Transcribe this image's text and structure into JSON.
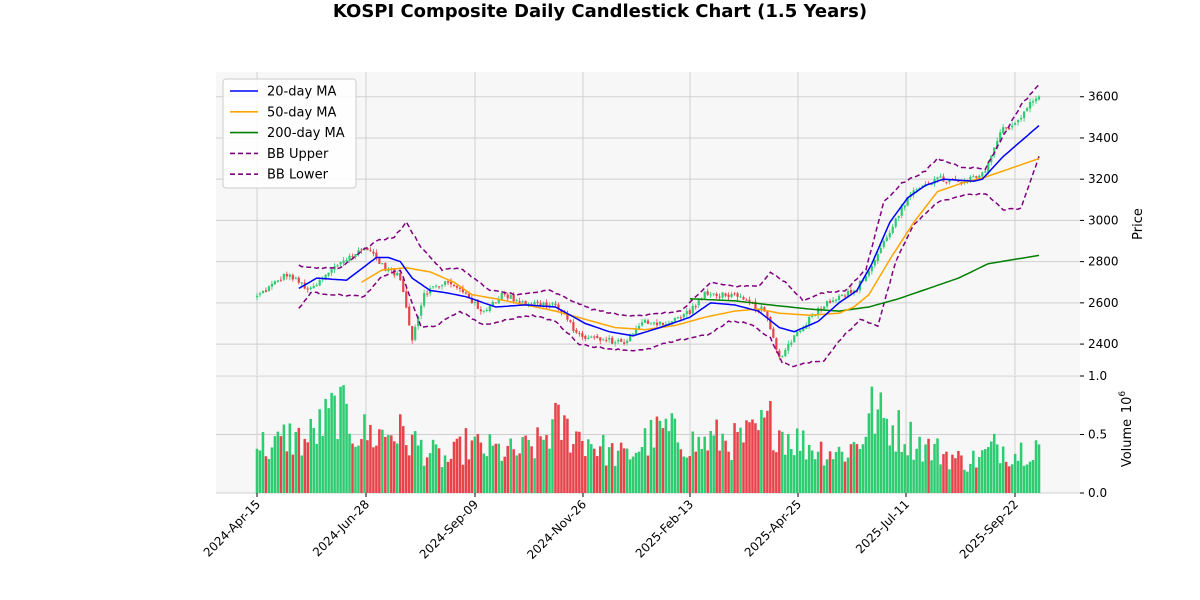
{
  "chart_data": {
    "type": "candlestick",
    "title": "KOSPI Composite Daily Candlestick Chart (1.5 Years)",
    "price_axis": {
      "label": "Price",
      "ylim": [
        2250,
        3720
      ],
      "ticks": [
        2400,
        2600,
        2800,
        3000,
        3200,
        3400,
        3600
      ]
    },
    "volume_axis": {
      "label": "Volume",
      "multiplier_label": "1e6",
      "ylim": [
        0,
        1.0
      ],
      "ticks": [
        "0.0",
        "0.5",
        "1.0"
      ]
    },
    "x_ticks": [
      "2024-Apr-15",
      "2024-Jun-28",
      "2024-Sep-09",
      "2024-Nov-26",
      "2025-Feb-13",
      "2025-Apr-25",
      "2025-Jul-11",
      "2025-Sep-22"
    ],
    "grid": true,
    "legend_position": "top-left",
    "colors": {
      "up": "#2ecc71",
      "down": "#e8424a",
      "ma20": "#0000ff",
      "ma50": "#ffa500",
      "ma200": "#008000",
      "bb": "#800080",
      "grid": "#d0d0d0",
      "panel_bg": "#f7f7f7"
    },
    "legend": [
      {
        "name": "20-day MA",
        "key": "ma20",
        "style": "solid"
      },
      {
        "name": "50-day MA",
        "key": "ma50",
        "style": "solid"
      },
      {
        "name": "200-day MA",
        "key": "ma200",
        "style": "solid"
      },
      {
        "name": "BB Upper",
        "key": "bb",
        "style": "dashed"
      },
      {
        "name": "BB Lower",
        "key": "bb",
        "style": "dashed"
      }
    ],
    "close_anchors": [
      [
        0,
        2630
      ],
      [
        10,
        2740
      ],
      [
        18,
        2660
      ],
      [
        28,
        2800
      ],
      [
        37,
        2870
      ],
      [
        42,
        2780
      ],
      [
        48,
        2720
      ],
      [
        52,
        2430
      ],
      [
        56,
        2650
      ],
      [
        63,
        2700
      ],
      [
        70,
        2650
      ],
      [
        75,
        2550
      ],
      [
        82,
        2640
      ],
      [
        90,
        2600
      ],
      [
        100,
        2590
      ],
      [
        108,
        2440
      ],
      [
        116,
        2420
      ],
      [
        123,
        2410
      ],
      [
        130,
        2510
      ],
      [
        138,
        2500
      ],
      [
        145,
        2560
      ],
      [
        150,
        2640
      ],
      [
        158,
        2640
      ],
      [
        165,
        2600
      ],
      [
        170,
        2560
      ],
      [
        175,
        2330
      ],
      [
        180,
        2440
      ],
      [
        188,
        2570
      ],
      [
        195,
        2640
      ],
      [
        200,
        2650
      ],
      [
        206,
        2780
      ],
      [
        212,
        2950
      ],
      [
        218,
        3100
      ],
      [
        223,
        3180
      ],
      [
        229,
        3200
      ],
      [
        236,
        3180
      ],
      [
        243,
        3220
      ],
      [
        250,
        3450
      ],
      [
        254,
        3470
      ],
      [
        258,
        3550
      ],
      [
        262,
        3600
      ]
    ],
    "ma20_anchors": [
      [
        14,
        2670
      ],
      [
        20,
        2720
      ],
      [
        30,
        2710
      ],
      [
        40,
        2820
      ],
      [
        44,
        2820
      ],
      [
        48,
        2800
      ],
      [
        52,
        2720
      ],
      [
        58,
        2660
      ],
      [
        63,
        2650
      ],
      [
        70,
        2630
      ],
      [
        80,
        2580
      ],
      [
        90,
        2590
      ],
      [
        100,
        2580
      ],
      [
        110,
        2500
      ],
      [
        118,
        2460
      ],
      [
        126,
        2440
      ],
      [
        135,
        2480
      ],
      [
        145,
        2530
      ],
      [
        152,
        2600
      ],
      [
        160,
        2590
      ],
      [
        168,
        2560
      ],
      [
        175,
        2480
      ],
      [
        180,
        2460
      ],
      [
        188,
        2510
      ],
      [
        195,
        2600
      ],
      [
        201,
        2660
      ],
      [
        206,
        2790
      ],
      [
        212,
        2990
      ],
      [
        218,
        3110
      ],
      [
        224,
        3170
      ],
      [
        230,
        3200
      ],
      [
        240,
        3190
      ],
      [
        243,
        3200
      ],
      [
        250,
        3310
      ],
      [
        262,
        3460
      ]
    ],
    "ma50_anchors": [
      [
        35,
        2700
      ],
      [
        42,
        2760
      ],
      [
        50,
        2770
      ],
      [
        58,
        2750
      ],
      [
        66,
        2700
      ],
      [
        72,
        2640
      ],
      [
        80,
        2620
      ],
      [
        90,
        2590
      ],
      [
        100,
        2560
      ],
      [
        110,
        2520
      ],
      [
        120,
        2480
      ],
      [
        130,
        2470
      ],
      [
        140,
        2490
      ],
      [
        150,
        2530
      ],
      [
        160,
        2560
      ],
      [
        168,
        2570
      ],
      [
        175,
        2550
      ],
      [
        185,
        2540
      ],
      [
        195,
        2550
      ],
      [
        200,
        2580
      ],
      [
        205,
        2640
      ],
      [
        212,
        2810
      ],
      [
        220,
        2990
      ],
      [
        228,
        3140
      ],
      [
        236,
        3180
      ],
      [
        244,
        3210
      ],
      [
        252,
        3250
      ],
      [
        262,
        3300
      ]
    ],
    "ma200_anchors": [
      [
        145,
        2620
      ],
      [
        160,
        2610
      ],
      [
        172,
        2590
      ],
      [
        185,
        2570
      ],
      [
        195,
        2560
      ],
      [
        205,
        2580
      ],
      [
        215,
        2620
      ],
      [
        225,
        2670
      ],
      [
        235,
        2720
      ],
      [
        245,
        2790
      ],
      [
        262,
        2830
      ]
    ],
    "bb_upper_anchors": [
      [
        14,
        2780
      ],
      [
        20,
        2770
      ],
      [
        28,
        2770
      ],
      [
        34,
        2840
      ],
      [
        40,
        2900
      ],
      [
        46,
        2920
      ],
      [
        50,
        2990
      ],
      [
        55,
        2870
      ],
      [
        62,
        2760
      ],
      [
        68,
        2770
      ],
      [
        78,
        2660
      ],
      [
        88,
        2640
      ],
      [
        98,
        2660
      ],
      [
        104,
        2620
      ],
      [
        112,
        2570
      ],
      [
        122,
        2540
      ],
      [
        130,
        2540
      ],
      [
        142,
        2560
      ],
      [
        148,
        2640
      ],
      [
        152,
        2700
      ],
      [
        160,
        2680
      ],
      [
        168,
        2680
      ],
      [
        172,
        2750
      ],
      [
        177,
        2700
      ],
      [
        183,
        2610
      ],
      [
        190,
        2650
      ],
      [
        197,
        2660
      ],
      [
        204,
        2760
      ],
      [
        210,
        3090
      ],
      [
        216,
        3180
      ],
      [
        224,
        3240
      ],
      [
        228,
        3300
      ],
      [
        236,
        3260
      ],
      [
        244,
        3250
      ],
      [
        250,
        3410
      ],
      [
        256,
        3560
      ],
      [
        262,
        3660
      ]
    ],
    "bb_lower_anchors": [
      [
        14,
        2570
      ],
      [
        18,
        2650
      ],
      [
        26,
        2640
      ],
      [
        36,
        2630
      ],
      [
        42,
        2730
      ],
      [
        48,
        2760
      ],
      [
        55,
        2480
      ],
      [
        60,
        2490
      ],
      [
        68,
        2560
      ],
      [
        76,
        2490
      ],
      [
        84,
        2520
      ],
      [
        92,
        2540
      ],
      [
        100,
        2510
      ],
      [
        108,
        2400
      ],
      [
        116,
        2380
      ],
      [
        124,
        2370
      ],
      [
        130,
        2370
      ],
      [
        136,
        2400
      ],
      [
        145,
        2430
      ],
      [
        152,
        2450
      ],
      [
        158,
        2510
      ],
      [
        165,
        2500
      ],
      [
        172,
        2430
      ],
      [
        176,
        2310
      ],
      [
        180,
        2290
      ],
      [
        184,
        2310
      ],
      [
        190,
        2320
      ],
      [
        196,
        2430
      ],
      [
        202,
        2520
      ],
      [
        208,
        2490
      ],
      [
        214,
        2800
      ],
      [
        220,
        2980
      ],
      [
        228,
        3090
      ],
      [
        236,
        3120
      ],
      [
        244,
        3130
      ],
      [
        250,
        3050
      ],
      [
        256,
        3060
      ],
      [
        262,
        3310
      ]
    ],
    "volume_anchors": [
      [
        0,
        0.45
      ],
      [
        5,
        0.38
      ],
      [
        10,
        0.5
      ],
      [
        16,
        0.45
      ],
      [
        22,
        0.6
      ],
      [
        27,
        0.75
      ],
      [
        33,
        0.55
      ],
      [
        40,
        0.5
      ],
      [
        46,
        0.55
      ],
      [
        52,
        0.45
      ],
      [
        58,
        0.35
      ],
      [
        64,
        0.28
      ],
      [
        70,
        0.42
      ],
      [
        78,
        0.38
      ],
      [
        86,
        0.35
      ],
      [
        94,
        0.42
      ],
      [
        100,
        0.6
      ],
      [
        106,
        0.52
      ],
      [
        112,
        0.45
      ],
      [
        118,
        0.35
      ],
      [
        124,
        0.32
      ],
      [
        130,
        0.45
      ],
      [
        136,
        0.55
      ],
      [
        142,
        0.48
      ],
      [
        148,
        0.42
      ],
      [
        154,
        0.48
      ],
      [
        160,
        0.45
      ],
      [
        166,
        0.5
      ],
      [
        172,
        0.62
      ],
      [
        178,
        0.5
      ],
      [
        184,
        0.42
      ],
      [
        190,
        0.38
      ],
      [
        196,
        0.35
      ],
      [
        202,
        0.45
      ],
      [
        206,
        0.72
      ],
      [
        212,
        0.6
      ],
      [
        218,
        0.5
      ],
      [
        224,
        0.4
      ],
      [
        230,
        0.35
      ],
      [
        236,
        0.28
      ],
      [
        242,
        0.3
      ],
      [
        248,
        0.42
      ],
      [
        254,
        0.35
      ],
      [
        258,
        0.4
      ],
      [
        262,
        0.45
      ]
    ],
    "n_candles": 263
  }
}
